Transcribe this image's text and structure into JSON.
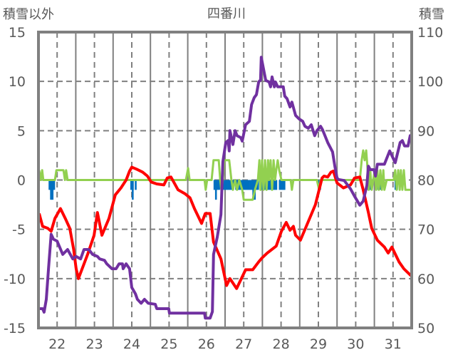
{
  "chart_data": {
    "type": "line",
    "title": "四番川",
    "ylabel_left": "積雪以外",
    "ylabel_right": "積雪",
    "xlim": [
      21.5,
      31.5
    ],
    "x_ticks": [
      22,
      23,
      24,
      25,
      26,
      27,
      28,
      29,
      30,
      31
    ],
    "x_tick_labels": [
      "22",
      "23",
      "24",
      "25",
      "26",
      "27",
      "28",
      "29",
      "30",
      "31"
    ],
    "ylim_left": [
      -15,
      15
    ],
    "y_ticks_left": [
      15,
      10,
      5,
      0,
      -5,
      -10,
      -15
    ],
    "y_tick_labels_left": [
      "15",
      "10",
      "5",
      "0",
      "-5",
      "-10",
      "-15"
    ],
    "ylim_right": [
      50,
      110
    ],
    "y_ticks_right": [
      110,
      100,
      90,
      80,
      70,
      60,
      50
    ],
    "y_tick_labels_right": [
      "110",
      "100",
      "90",
      "80",
      "70",
      "60",
      "50"
    ],
    "grid": true,
    "colors": {
      "red": "#ff0000",
      "purple": "#7030a0",
      "green": "#92d050",
      "blue": "#0070c0",
      "axis": "#808080"
    },
    "series": [
      {
        "name": "red",
        "axis": "left",
        "color": "#ff0000",
        "points": [
          [
            21.52,
            -3.4
          ],
          [
            21.61,
            -4.7
          ],
          [
            21.75,
            -4.9
          ],
          [
            21.84,
            -5.2
          ],
          [
            21.94,
            -3.9
          ],
          [
            22.03,
            -3.3
          ],
          [
            22.09,
            -2.9
          ],
          [
            22.23,
            -4.0
          ],
          [
            22.34,
            -4.9
          ],
          [
            22.44,
            -7.0
          ],
          [
            22.51,
            -9.0
          ],
          [
            22.57,
            -10.0
          ],
          [
            22.7,
            -8.7
          ],
          [
            22.82,
            -7.5
          ],
          [
            22.99,
            -5.6
          ],
          [
            23.08,
            -3.3
          ],
          [
            23.2,
            -5.6
          ],
          [
            23.39,
            -3.9
          ],
          [
            23.56,
            -1.5
          ],
          [
            23.71,
            -0.8
          ],
          [
            23.85,
            0.0
          ],
          [
            23.94,
            0.9
          ],
          [
            24.0,
            1.3
          ],
          [
            24.13,
            1.1
          ],
          [
            24.29,
            0.8
          ],
          [
            24.42,
            0.4
          ],
          [
            24.52,
            -0.2
          ],
          [
            24.67,
            -0.4
          ],
          [
            24.86,
            -0.5
          ],
          [
            24.95,
            0.2
          ],
          [
            25.05,
            0.3
          ],
          [
            25.24,
            -1.0
          ],
          [
            25.43,
            -1.4
          ],
          [
            25.56,
            -1.8
          ],
          [
            25.68,
            -2.9
          ],
          [
            25.87,
            -4.4
          ],
          [
            25.97,
            -3.4
          ],
          [
            26.1,
            -3.4
          ],
          [
            26.19,
            -6.3
          ],
          [
            26.39,
            -8.0
          ],
          [
            26.54,
            -10.7
          ],
          [
            26.63,
            -10.0
          ],
          [
            26.81,
            -11.0
          ],
          [
            27.05,
            -9.1
          ],
          [
            27.24,
            -9.1
          ],
          [
            27.4,
            -8.3
          ],
          [
            27.49,
            -7.9
          ],
          [
            27.63,
            -7.4
          ],
          [
            27.87,
            -6.7
          ],
          [
            28.01,
            -5.2
          ],
          [
            28.14,
            -4.3
          ],
          [
            28.24,
            -5.1
          ],
          [
            28.33,
            -4.7
          ],
          [
            28.39,
            -5.6
          ],
          [
            28.52,
            -6.1
          ],
          [
            28.73,
            -4.2
          ],
          [
            28.92,
            -2.5
          ],
          [
            29.1,
            0.2
          ],
          [
            29.15,
            0.4
          ],
          [
            29.25,
            0.3
          ],
          [
            29.34,
            0.8
          ],
          [
            29.4,
            0.9
          ],
          [
            29.5,
            -0.3
          ],
          [
            29.67,
            -0.8
          ],
          [
            29.86,
            -0.5
          ],
          [
            29.97,
            0.2
          ],
          [
            30.11,
            0.3
          ],
          [
            30.2,
            -1.0
          ],
          [
            30.34,
            -3.3
          ],
          [
            30.43,
            -4.9
          ],
          [
            30.58,
            -6.1
          ],
          [
            30.77,
            -6.8
          ],
          [
            30.87,
            -7.4
          ],
          [
            30.97,
            -6.8
          ],
          [
            31.16,
            -8.3
          ],
          [
            31.29,
            -9.0
          ],
          [
            31.48,
            -9.7
          ]
        ]
      },
      {
        "name": "purple",
        "axis": "right",
        "color": "#7030a0",
        "points": [
          [
            21.52,
            53.9
          ],
          [
            21.61,
            53.9
          ],
          [
            21.65,
            53.2
          ],
          [
            21.71,
            55.8
          ],
          [
            21.77,
            62
          ],
          [
            21.84,
            69
          ],
          [
            21.9,
            68
          ],
          [
            22.0,
            67.6
          ],
          [
            22.15,
            64.9
          ],
          [
            22.28,
            65.9
          ],
          [
            22.42,
            64
          ],
          [
            22.51,
            64.5
          ],
          [
            22.63,
            64
          ],
          [
            22.72,
            65.9
          ],
          [
            22.85,
            65.9
          ],
          [
            22.95,
            64.9
          ],
          [
            23.08,
            64.5
          ],
          [
            23.14,
            64
          ],
          [
            23.27,
            63.7
          ],
          [
            23.33,
            63
          ],
          [
            23.47,
            62
          ],
          [
            23.58,
            62
          ],
          [
            23.66,
            63
          ],
          [
            23.75,
            63
          ],
          [
            23.77,
            62
          ],
          [
            23.85,
            63
          ],
          [
            23.94,
            62
          ],
          [
            24.0,
            58.2
          ],
          [
            24.1,
            56.9
          ],
          [
            24.15,
            55.8
          ],
          [
            24.25,
            55
          ],
          [
            24.34,
            55.8
          ],
          [
            24.44,
            55
          ],
          [
            24.63,
            54.8
          ],
          [
            24.67,
            53.9
          ],
          [
            24.99,
            53.9
          ],
          [
            25.01,
            53
          ],
          [
            25.95,
            53
          ],
          [
            25.97,
            52
          ],
          [
            26.1,
            52
          ],
          [
            26.16,
            53.3
          ],
          [
            26.19,
            64.9
          ],
          [
            26.29,
            68.4
          ],
          [
            26.39,
            73
          ],
          [
            26.44,
            83.7
          ],
          [
            26.52,
            87.6
          ],
          [
            26.58,
            88
          ],
          [
            26.61,
            85.9
          ],
          [
            26.63,
            90
          ],
          [
            26.71,
            87.2
          ],
          [
            26.77,
            90
          ],
          [
            26.82,
            89
          ],
          [
            26.92,
            88.6
          ],
          [
            26.96,
            87.9
          ],
          [
            27.05,
            91.2
          ],
          [
            27.15,
            91.9
          ],
          [
            27.21,
            95.3
          ],
          [
            27.28,
            96.7
          ],
          [
            27.34,
            97.3
          ],
          [
            27.4,
            99.9
          ],
          [
            27.45,
            100.3
          ],
          [
            27.47,
            104.9
          ],
          [
            27.53,
            102.5
          ],
          [
            27.59,
            100.2
          ],
          [
            27.68,
            99.9
          ],
          [
            27.72,
            98.9
          ],
          [
            27.76,
            100.9
          ],
          [
            27.82,
            98.9
          ],
          [
            27.85,
            99.9
          ],
          [
            27.91,
            98.9
          ],
          [
            28.06,
            98.9
          ],
          [
            28.1,
            97
          ],
          [
            28.16,
            96.5
          ],
          [
            28.24,
            94.8
          ],
          [
            28.29,
            95.8
          ],
          [
            28.39,
            93.1
          ],
          [
            28.48,
            92.4
          ],
          [
            28.58,
            91.9
          ],
          [
            28.64,
            90.9
          ],
          [
            28.73,
            90.5
          ],
          [
            28.81,
            91.2
          ],
          [
            28.9,
            89
          ],
          [
            28.96,
            90
          ],
          [
            29.06,
            90.9
          ],
          [
            29.11,
            90.2
          ],
          [
            29.25,
            87.6
          ],
          [
            29.38,
            85.7
          ],
          [
            29.44,
            82.8
          ],
          [
            29.5,
            80.4
          ],
          [
            29.54,
            80.1
          ],
          [
            29.69,
            79.9
          ],
          [
            29.86,
            78.2
          ],
          [
            29.97,
            76.7
          ],
          [
            30.11,
            74.9
          ],
          [
            30.2,
            75.7
          ],
          [
            30.3,
            78.9
          ],
          [
            30.34,
            82.8
          ],
          [
            30.39,
            82.1
          ],
          [
            30.49,
            82.1
          ],
          [
            30.53,
            80.8
          ],
          [
            30.58,
            83.2
          ],
          [
            30.77,
            83.2
          ],
          [
            30.91,
            85.9
          ],
          [
            31.06,
            83.5
          ],
          [
            31.19,
            87.6
          ],
          [
            31.25,
            88
          ],
          [
            31.31,
            86.9
          ],
          [
            31.4,
            86.9
          ],
          [
            31.46,
            89
          ],
          [
            31.5,
            88
          ]
        ]
      },
      {
        "name": "green",
        "axis": "left",
        "color": "#92d050",
        "points": [
          [
            21.52,
            1
          ],
          [
            21.56,
            0
          ],
          [
            21.6,
            1
          ],
          [
            21.63,
            0
          ],
          [
            21.94,
            0
          ],
          [
            21.98,
            1
          ],
          [
            22.17,
            1
          ],
          [
            22.21,
            0
          ],
          [
            22.24,
            1
          ],
          [
            22.28,
            0
          ],
          [
            25.45,
            0
          ],
          [
            25.51,
            1.2
          ],
          [
            25.55,
            0
          ],
          [
            25.95,
            0
          ],
          [
            25.98,
            -1
          ],
          [
            26.02,
            0
          ],
          [
            26.14,
            0
          ],
          [
            26.19,
            2
          ],
          [
            26.33,
            2
          ],
          [
            26.37,
            0
          ],
          [
            26.4,
            -1
          ],
          [
            26.44,
            0
          ],
          [
            26.48,
            2
          ],
          [
            26.61,
            2
          ],
          [
            26.67,
            0
          ],
          [
            26.71,
            -1
          ],
          [
            26.77,
            0
          ],
          [
            26.82,
            -1
          ],
          [
            26.88,
            0
          ],
          [
            26.96,
            -1
          ],
          [
            27.0,
            -2
          ],
          [
            27.24,
            -2
          ],
          [
            27.3,
            -1
          ],
          [
            27.38,
            0
          ],
          [
            27.42,
            2
          ],
          [
            27.45,
            -1
          ],
          [
            27.49,
            2
          ],
          [
            27.53,
            -1
          ],
          [
            27.57,
            2
          ],
          [
            27.61,
            -1
          ],
          [
            27.65,
            2
          ],
          [
            27.68,
            0
          ],
          [
            27.72,
            2
          ],
          [
            27.76,
            -1
          ],
          [
            27.8,
            2
          ],
          [
            27.84,
            0
          ],
          [
            27.87,
            1
          ],
          [
            27.91,
            2
          ],
          [
            27.95,
            1
          ],
          [
            28.01,
            0
          ],
          [
            28.26,
            0
          ],
          [
            28.29,
            -1
          ],
          [
            28.33,
            0
          ],
          [
            28.96,
            0
          ],
          [
            29.02,
            -1
          ],
          [
            29.06,
            0
          ],
          [
            30.11,
            0
          ],
          [
            30.16,
            2
          ],
          [
            30.2,
            3
          ],
          [
            30.24,
            2
          ],
          [
            30.28,
            3
          ],
          [
            30.32,
            1
          ],
          [
            30.35,
            -1
          ],
          [
            30.39,
            1
          ],
          [
            30.43,
            -1
          ],
          [
            30.47,
            0
          ],
          [
            30.51,
            1
          ],
          [
            30.55,
            -1
          ],
          [
            30.58,
            1
          ],
          [
            30.62,
            -1
          ],
          [
            30.66,
            1
          ],
          [
            30.7,
            -1
          ],
          [
            30.74,
            1
          ],
          [
            30.77,
            -1
          ],
          [
            30.83,
            0
          ],
          [
            31.02,
            0
          ],
          [
            31.06,
            1
          ],
          [
            31.1,
            -1
          ],
          [
            31.14,
            1
          ],
          [
            31.18,
            -1
          ],
          [
            31.21,
            1
          ],
          [
            31.25,
            -1
          ],
          [
            31.29,
            1
          ],
          [
            31.33,
            -1
          ],
          [
            31.5,
            -1
          ]
        ]
      }
    ],
    "bars": {
      "name": "blue",
      "axis": "left",
      "color": "#0070c0",
      "ranges": [
        [
          21.79,
          21.94,
          -1
        ],
        [
          21.83,
          21.88,
          -2
        ],
        [
          23.98,
          24.06,
          -1
        ],
        [
          24.02,
          24.04,
          -2
        ],
        [
          24.1,
          24.12,
          -1
        ],
        [
          26.21,
          26.35,
          -1
        ],
        [
          26.25,
          26.29,
          -2
        ],
        [
          26.42,
          26.75,
          -1
        ],
        [
          26.79,
          26.92,
          -1
        ],
        [
          26.96,
          27.15,
          -1
        ],
        [
          27.17,
          27.4,
          -1
        ],
        [
          27.25,
          27.33,
          -2
        ],
        [
          27.45,
          27.9,
          -1
        ],
        [
          27.96,
          28.12,
          -1
        ],
        [
          29.0,
          29.06,
          -1
        ],
        [
          30.31,
          30.4,
          -1
        ],
        [
          30.6,
          30.68,
          -1
        ],
        [
          31.06,
          31.14,
          -1
        ]
      ]
    }
  }
}
